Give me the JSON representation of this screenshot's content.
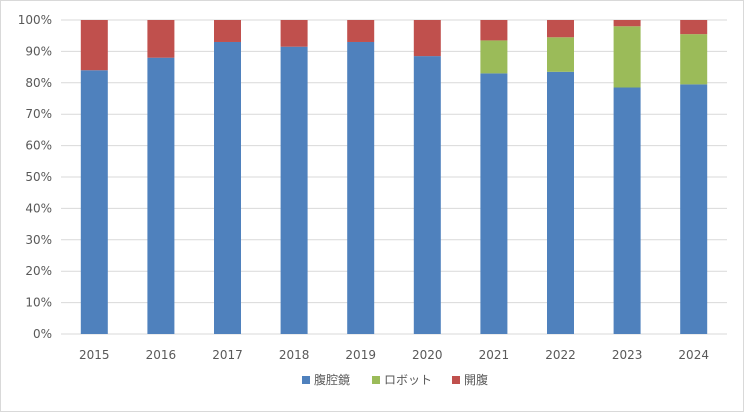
{
  "chart_data": {
    "type": "bar",
    "stacked": true,
    "percent": true,
    "categories": [
      "2015",
      "2016",
      "2017",
      "2018",
      "2019",
      "2020",
      "2021",
      "2022",
      "2023",
      "2024"
    ],
    "series": [
      {
        "name": "腹腔鏡",
        "color": "#4f81bd",
        "values": [
          84,
          88,
          93,
          91.5,
          93,
          88.5,
          83,
          83.5,
          78.5,
          79.5
        ]
      },
      {
        "name": "ロボット",
        "color": "#9bbb59",
        "values": [
          0,
          0,
          0,
          0,
          0,
          0,
          10.5,
          11,
          19.5,
          16
        ]
      },
      {
        "name": "開腹",
        "color": "#c0504d",
        "values": [
          16,
          12,
          7,
          8.5,
          7,
          11.5,
          6.5,
          5.5,
          2,
          4.5
        ]
      }
    ],
    "y_ticks": [
      "0%",
      "10%",
      "20%",
      "30%",
      "40%",
      "50%",
      "60%",
      "70%",
      "80%",
      "90%",
      "100%"
    ],
    "ylim": [
      0,
      100
    ],
    "grid": true,
    "legend_position": "bottom"
  }
}
